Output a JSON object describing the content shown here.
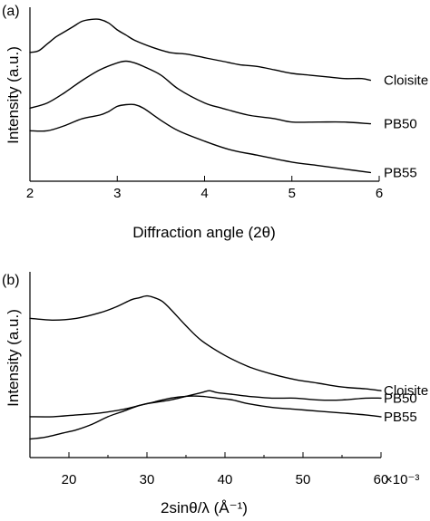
{
  "chart_data": [
    {
      "type": "line",
      "panel_label": "(a)",
      "xlabel": "Diffraction angle (2θ)",
      "ylabel": "Intensity (a.u.)",
      "xlim": [
        2,
        6
      ],
      "ylim": [
        0,
        1
      ],
      "x_ticks": [
        2,
        3,
        4,
        5,
        6
      ],
      "x_tick_labels": [
        "2",
        "3",
        "4",
        "5",
        "6"
      ],
      "y_ticks": [],
      "grid": false,
      "series": [
        {
          "name": "Cloisite",
          "x": [
            2.0,
            2.1,
            2.2,
            2.3,
            2.4,
            2.5,
            2.6,
            2.7,
            2.8,
            2.9,
            3.0,
            3.1,
            3.2,
            3.4,
            3.6,
            3.8,
            4.0,
            4.2,
            4.4,
            4.6,
            4.8,
            5.0,
            5.2,
            5.4,
            5.6,
            5.8,
            5.9
          ],
          "values": [
            0.74,
            0.75,
            0.79,
            0.83,
            0.86,
            0.89,
            0.92,
            0.93,
            0.93,
            0.91,
            0.87,
            0.84,
            0.81,
            0.77,
            0.74,
            0.73,
            0.71,
            0.69,
            0.67,
            0.66,
            0.64,
            0.62,
            0.61,
            0.6,
            0.59,
            0.59,
            0.58
          ]
        },
        {
          "name": "PB50",
          "x": [
            2.0,
            2.2,
            2.4,
            2.6,
            2.8,
            3.0,
            3.1,
            3.2,
            3.3,
            3.5,
            3.7,
            4.0,
            4.2,
            4.5,
            4.8,
            5.0,
            5.3,
            5.6,
            5.9
          ],
          "values": [
            0.42,
            0.45,
            0.51,
            0.58,
            0.64,
            0.68,
            0.69,
            0.68,
            0.66,
            0.61,
            0.53,
            0.45,
            0.42,
            0.38,
            0.36,
            0.34,
            0.34,
            0.34,
            0.33
          ]
        },
        {
          "name": "PB55",
          "x": [
            2.0,
            2.2,
            2.4,
            2.6,
            2.8,
            2.9,
            3.0,
            3.1,
            3.2,
            3.3,
            3.5,
            3.7,
            4.0,
            4.3,
            4.6,
            5.0,
            5.3,
            5.6,
            5.9
          ],
          "values": [
            0.29,
            0.29,
            0.32,
            0.36,
            0.38,
            0.4,
            0.43,
            0.44,
            0.44,
            0.42,
            0.35,
            0.29,
            0.23,
            0.18,
            0.15,
            0.11,
            0.09,
            0.07,
            0.05
          ]
        }
      ]
    },
    {
      "type": "line",
      "panel_label": "(b)",
      "xlabel": "2sinθ/λ (Å⁻¹)",
      "ylabel": "Intensity (a.u.)",
      "x_scale_label": "×10⁻³",
      "xlim": [
        15,
        60
      ],
      "ylim": [
        0,
        1
      ],
      "x_ticks": [
        20,
        30,
        40,
        50,
        60
      ],
      "x_tick_labels": [
        "20",
        "30",
        "40",
        "50",
        "60"
      ],
      "y_ticks": [],
      "grid": false,
      "series": [
        {
          "name": "Cloisite",
          "x": [
            15,
            18,
            21,
            24,
            26,
            28,
            29,
            30,
            31,
            32,
            33,
            35,
            37,
            40,
            43,
            46,
            49,
            52,
            55,
            58,
            60
          ],
          "values": [
            0.75,
            0.74,
            0.75,
            0.78,
            0.81,
            0.85,
            0.86,
            0.87,
            0.86,
            0.84,
            0.8,
            0.71,
            0.63,
            0.55,
            0.49,
            0.45,
            0.42,
            0.4,
            0.38,
            0.37,
            0.36
          ]
        },
        {
          "name": "PB50",
          "x": [
            15,
            18,
            21,
            24,
            27,
            30,
            33,
            35,
            37,
            38,
            39,
            41,
            43,
            46,
            49,
            52,
            55,
            58,
            60
          ],
          "values": [
            0.22,
            0.22,
            0.23,
            0.24,
            0.26,
            0.29,
            0.31,
            0.33,
            0.35,
            0.36,
            0.35,
            0.34,
            0.33,
            0.32,
            0.32,
            0.31,
            0.31,
            0.32,
            0.32
          ]
        },
        {
          "name": "PB55",
          "x": [
            15,
            17,
            19,
            21,
            23,
            25,
            27,
            29,
            31,
            33,
            35,
            37,
            39,
            41,
            43,
            46,
            49,
            52,
            55,
            58,
            60
          ],
          "values": [
            0.1,
            0.11,
            0.13,
            0.15,
            0.18,
            0.22,
            0.25,
            0.28,
            0.3,
            0.32,
            0.33,
            0.33,
            0.32,
            0.31,
            0.29,
            0.27,
            0.26,
            0.25,
            0.24,
            0.23,
            0.22
          ]
        }
      ]
    }
  ]
}
